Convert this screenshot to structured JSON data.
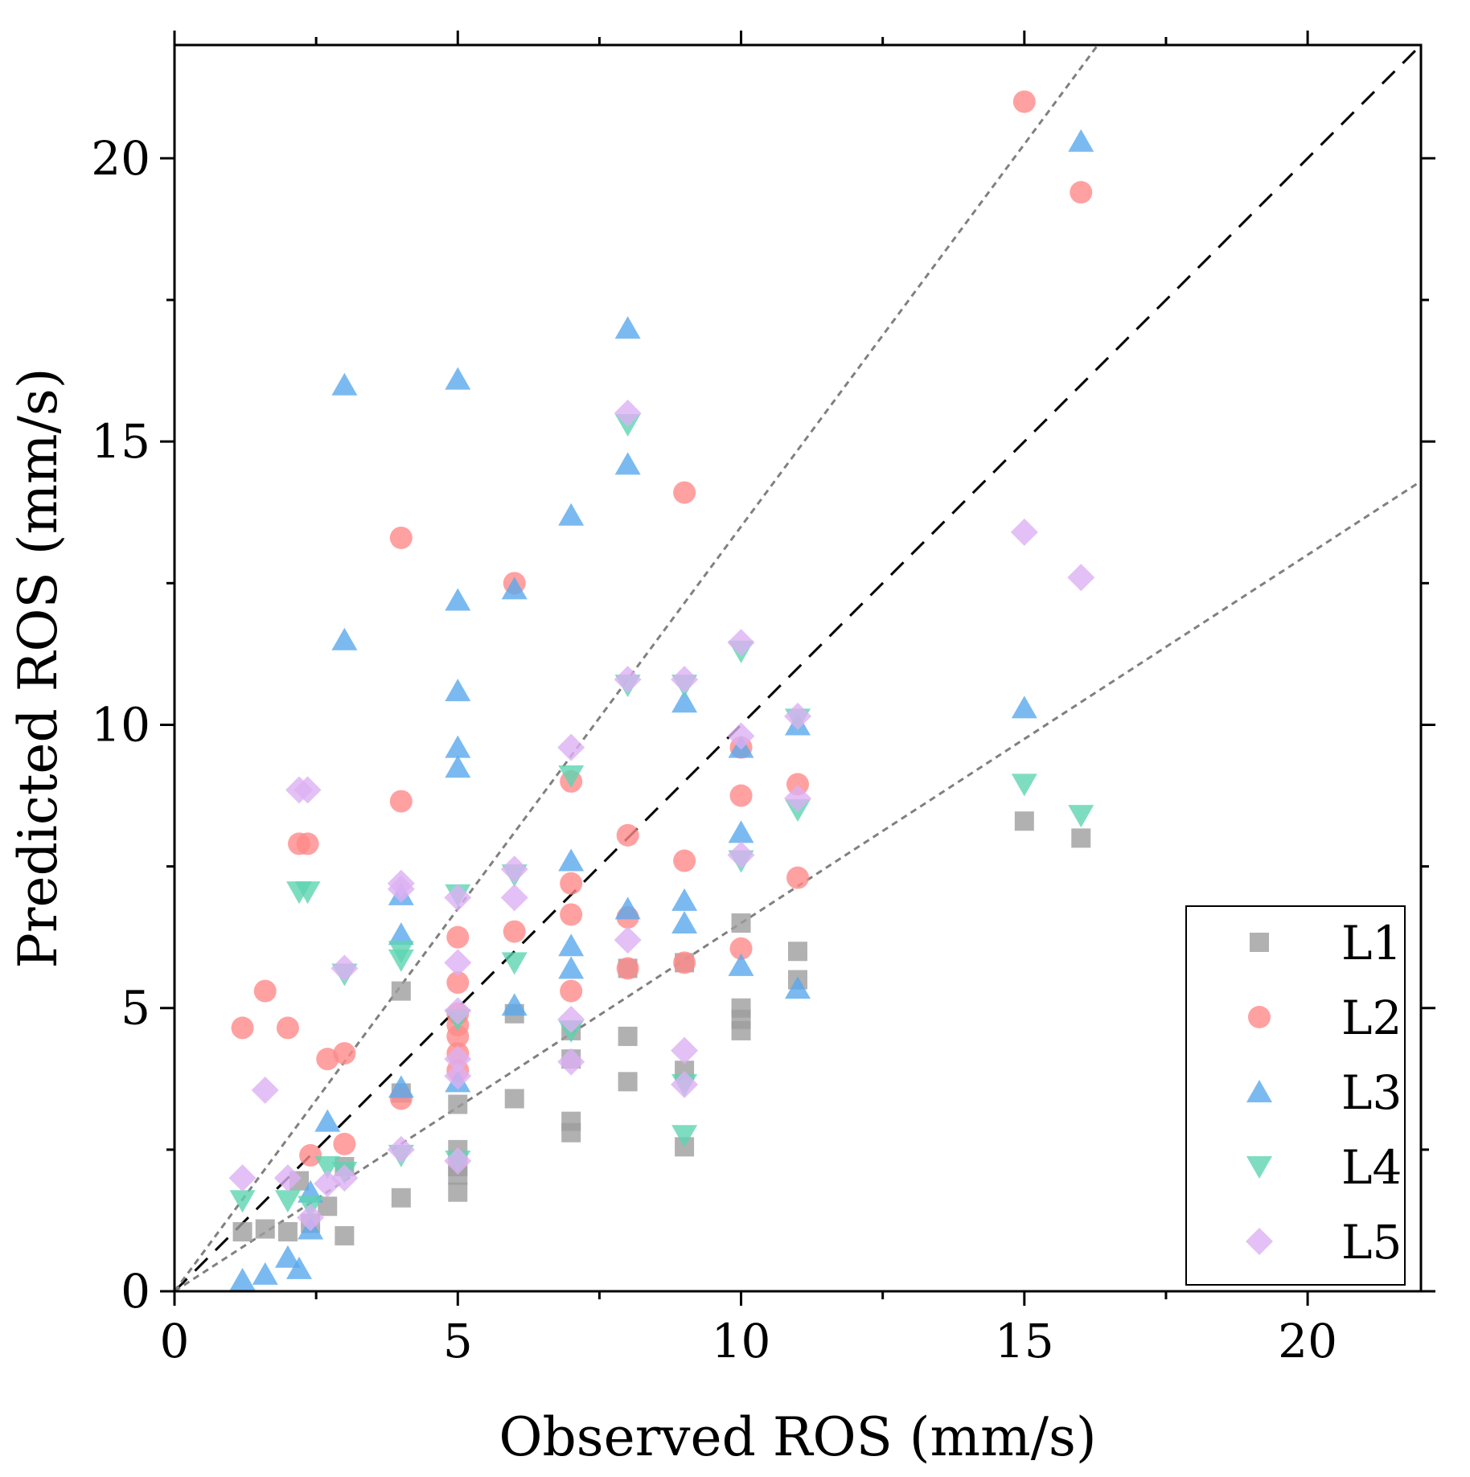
{
  "chart_data": {
    "type": "scatter",
    "xlabel": "Observed ROS (mm/s)",
    "ylabel": "Predicted ROS (mm/s)",
    "xlim": [
      0,
      22
    ],
    "ylim": [
      0,
      22
    ],
    "x_ticks": [
      0,
      5,
      10,
      15,
      20
    ],
    "y_ticks": [
      0,
      5,
      10,
      15,
      20
    ],
    "x_tick_labels": [
      "0",
      "5",
      "10",
      "15",
      "20"
    ],
    "y_tick_labels": [
      "0",
      "5",
      "10",
      "15",
      "20"
    ],
    "grid": false,
    "legend_position": "bottom-right",
    "reference_lines": [
      {
        "slope": 1.0,
        "style": "dashed",
        "color": "#000000"
      },
      {
        "slope": 1.35,
        "style": "dotted",
        "color": "#808080"
      },
      {
        "slope": 0.65,
        "style": "dotted",
        "color": "#808080"
      }
    ],
    "series": [
      {
        "name": "L1",
        "marker": "square",
        "color": "#9e9e9e",
        "points": [
          [
            1.2,
            1.05
          ],
          [
            1.6,
            1.1
          ],
          [
            2.0,
            1.05
          ],
          [
            2.2,
            1.95
          ],
          [
            2.4,
            1.2
          ],
          [
            2.7,
            1.5
          ],
          [
            3.0,
            0.98
          ],
          [
            3.0,
            2.2
          ],
          [
            4.0,
            5.3
          ],
          [
            4.0,
            1.65
          ],
          [
            4.0,
            3.5
          ],
          [
            5.0,
            2.5
          ],
          [
            5.0,
            2.2
          ],
          [
            5.0,
            2.05
          ],
          [
            5.0,
            1.75
          ],
          [
            5.0,
            3.3
          ],
          [
            6.0,
            4.9
          ],
          [
            6.0,
            3.4
          ],
          [
            7.0,
            3.0
          ],
          [
            7.0,
            2.8
          ],
          [
            7.0,
            4.6
          ],
          [
            7.0,
            4.1
          ],
          [
            8.0,
            5.7
          ],
          [
            8.0,
            4.5
          ],
          [
            8.0,
            3.7
          ],
          [
            9.0,
            5.8
          ],
          [
            9.0,
            3.9
          ],
          [
            9.0,
            2.55
          ],
          [
            10.0,
            6.5
          ],
          [
            10.0,
            5.0
          ],
          [
            10.0,
            4.8
          ],
          [
            10.0,
            4.6
          ],
          [
            11.0,
            6.0
          ],
          [
            11.0,
            5.5
          ],
          [
            15.0,
            8.3
          ],
          [
            16.0,
            8.0
          ]
        ]
      },
      {
        "name": "L2",
        "marker": "circle",
        "color": "#ff8a8a",
        "points": [
          [
            1.2,
            4.65
          ],
          [
            1.6,
            5.3
          ],
          [
            2.0,
            4.65
          ],
          [
            2.2,
            7.9
          ],
          [
            2.35,
            7.9
          ],
          [
            2.4,
            2.4
          ],
          [
            2.7,
            4.1
          ],
          [
            3.0,
            4.2
          ],
          [
            3.0,
            2.6
          ],
          [
            4.0,
            13.3
          ],
          [
            4.0,
            8.65
          ],
          [
            4.0,
            3.4
          ],
          [
            5.0,
            6.25
          ],
          [
            5.0,
            5.45
          ],
          [
            5.0,
            4.9
          ],
          [
            5.0,
            4.7
          ],
          [
            5.0,
            4.5
          ],
          [
            5.0,
            4.2
          ],
          [
            5.0,
            3.9
          ],
          [
            6.0,
            12.5
          ],
          [
            6.0,
            6.35
          ],
          [
            7.0,
            9.0
          ],
          [
            7.0,
            7.2
          ],
          [
            7.0,
            6.65
          ],
          [
            7.0,
            5.3
          ],
          [
            8.0,
            8.05
          ],
          [
            8.0,
            6.6
          ],
          [
            8.0,
            5.7
          ],
          [
            9.0,
            14.1
          ],
          [
            9.0,
            7.6
          ],
          [
            9.0,
            5.8
          ],
          [
            10.0,
            9.6
          ],
          [
            10.0,
            8.75
          ],
          [
            10.0,
            6.05
          ],
          [
            11.0,
            8.95
          ],
          [
            11.0,
            7.3
          ],
          [
            15.0,
            21.0
          ],
          [
            16.0,
            19.4
          ]
        ]
      },
      {
        "name": "L3",
        "marker": "triangle-up",
        "color": "#5aa9ec",
        "points": [
          [
            1.2,
            0.2
          ],
          [
            1.6,
            0.3
          ],
          [
            2.0,
            0.6
          ],
          [
            2.2,
            0.4
          ],
          [
            2.4,
            1.1
          ],
          [
            2.4,
            1.75
          ],
          [
            2.7,
            3.0
          ],
          [
            3.0,
            16.0
          ],
          [
            3.0,
            11.5
          ],
          [
            4.0,
            7.0
          ],
          [
            4.0,
            6.3
          ],
          [
            4.0,
            3.6
          ],
          [
            5.0,
            16.1
          ],
          [
            5.0,
            12.2
          ],
          [
            5.0,
            10.6
          ],
          [
            5.0,
            9.6
          ],
          [
            5.0,
            9.25
          ],
          [
            5.0,
            3.7
          ],
          [
            6.0,
            12.4
          ],
          [
            6.0,
            5.05
          ],
          [
            7.0,
            13.7
          ],
          [
            7.0,
            7.6
          ],
          [
            7.0,
            6.1
          ],
          [
            7.0,
            5.7
          ],
          [
            8.0,
            17.0
          ],
          [
            8.0,
            14.6
          ],
          [
            8.0,
            6.75
          ],
          [
            9.0,
            10.4
          ],
          [
            9.0,
            6.9
          ],
          [
            9.0,
            6.5
          ],
          [
            10.0,
            9.6
          ],
          [
            10.0,
            8.1
          ],
          [
            10.0,
            5.75
          ],
          [
            11.0,
            10.0
          ],
          [
            11.0,
            5.35
          ],
          [
            15.0,
            10.3
          ],
          [
            16.0,
            20.3
          ]
        ]
      },
      {
        "name": "L4",
        "marker": "triangle-down",
        "color": "#5ed4b0",
        "points": [
          [
            1.2,
            1.6
          ],
          [
            2.0,
            1.6
          ],
          [
            2.2,
            7.05
          ],
          [
            2.35,
            7.05
          ],
          [
            2.4,
            1.5
          ],
          [
            2.7,
            2.2
          ],
          [
            3.0,
            2.1
          ],
          [
            3.0,
            5.6
          ],
          [
            4.0,
            6.0
          ],
          [
            4.0,
            5.85
          ],
          [
            4.0,
            2.4
          ],
          [
            5.0,
            7.0
          ],
          [
            5.0,
            4.8
          ],
          [
            5.0,
            2.3
          ],
          [
            6.0,
            5.8
          ],
          [
            6.0,
            7.35
          ],
          [
            7.0,
            9.1
          ],
          [
            7.0,
            4.6
          ],
          [
            8.0,
            15.3
          ],
          [
            8.0,
            10.7
          ],
          [
            9.0,
            10.7
          ],
          [
            9.0,
            3.65
          ],
          [
            9.0,
            2.75
          ],
          [
            10.0,
            11.3
          ],
          [
            10.0,
            7.6
          ],
          [
            11.0,
            10.1
          ],
          [
            11.0,
            8.5
          ],
          [
            15.0,
            8.95
          ],
          [
            16.0,
            8.4
          ]
        ]
      },
      {
        "name": "L5",
        "marker": "diamond",
        "color": "#dcb0f2",
        "points": [
          [
            1.2,
            2.0
          ],
          [
            1.6,
            3.55
          ],
          [
            2.0,
            2.0
          ],
          [
            2.2,
            8.85
          ],
          [
            2.35,
            8.85
          ],
          [
            2.4,
            1.3
          ],
          [
            2.7,
            1.9
          ],
          [
            3.0,
            2.0
          ],
          [
            3.0,
            5.7
          ],
          [
            4.0,
            7.2
          ],
          [
            4.0,
            7.1
          ],
          [
            4.0,
            2.5
          ],
          [
            5.0,
            6.95
          ],
          [
            5.0,
            5.8
          ],
          [
            5.0,
            4.95
          ],
          [
            5.0,
            4.1
          ],
          [
            5.0,
            3.8
          ],
          [
            5.0,
            2.3
          ],
          [
            6.0,
            7.45
          ],
          [
            6.0,
            6.95
          ],
          [
            7.0,
            9.6
          ],
          [
            7.0,
            4.8
          ],
          [
            7.0,
            4.05
          ],
          [
            8.0,
            15.5
          ],
          [
            8.0,
            10.8
          ],
          [
            8.0,
            6.2
          ],
          [
            9.0,
            10.8
          ],
          [
            9.0,
            4.25
          ],
          [
            9.0,
            3.65
          ],
          [
            10.0,
            11.45
          ],
          [
            10.0,
            9.8
          ],
          [
            10.0,
            7.7
          ],
          [
            11.0,
            10.15
          ],
          [
            11.0,
            8.7
          ],
          [
            15.0,
            13.4
          ],
          [
            16.0,
            12.6
          ]
        ]
      }
    ]
  }
}
